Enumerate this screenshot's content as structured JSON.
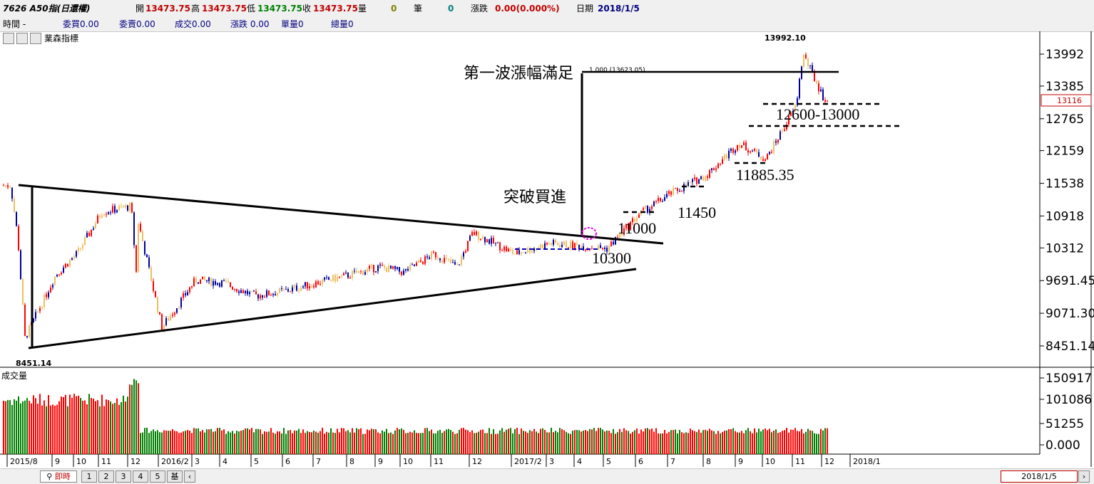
{
  "header": {
    "symbol": "7626 A50指(日還權)",
    "open_label": "開",
    "open": "13473.75",
    "high_label": "高",
    "high": "13473.75",
    "low_label": "低",
    "low": "13473.75",
    "close_label": "收",
    "close": "13473.75",
    "volume_label": "量",
    "volume": "0",
    "trades_label": "筆",
    "trades": "0",
    "change_label": "漲跌",
    "change": "0.00(0.000%)",
    "date_label": "日期",
    "date": "2018/1/5"
  },
  "subheader": {
    "time": "時間 -",
    "bid": "委買0.00",
    "ask": "委賣0.00",
    "deal": "成交0.00",
    "chg": "漲跌 0.00",
    "single": "單量0",
    "total": "總量0"
  },
  "toolbar": {
    "indicator_name": "業森指標"
  },
  "volume_panel": {
    "label": "成交量"
  },
  "bottom": {
    "query_button": "即時",
    "pages": [
      "1",
      "2",
      "3",
      "4",
      "5",
      "基"
    ],
    "date_box": "2018/1/5"
  },
  "colors": {
    "up": "#ff0000",
    "down": "#000099",
    "neutral": "#e8c060",
    "volume_up": "#ff0000",
    "volume_down": "#008000",
    "annotation": "#000000"
  },
  "chart_data": {
    "type": "candlestick",
    "title": "",
    "price_axis_ticks": [
      "13992",
      "13385",
      "12765",
      "12159",
      "11538",
      "10918",
      "10312",
      "9691.45",
      "9071.30",
      "8451.14"
    ],
    "current_price_label": "13116",
    "max_label": "13992.10",
    "min_label": "8451.14",
    "ylim": [
      8451.14,
      13992.1
    ],
    "x_ticks": [
      "2015/8",
      "9",
      "10",
      "11",
      "12",
      "2016/2",
      "3",
      "4",
      "5",
      "6",
      "7",
      "8",
      "9",
      "10",
      "11",
      "12",
      "2017/2",
      "3",
      "4",
      "5",
      "6",
      "7",
      "8",
      "9",
      "10",
      "11",
      "12",
      "2018/1"
    ],
    "volume_axis_ticks": [
      "150917",
      "101086",
      "51255",
      "0.000"
    ],
    "annotations": {
      "wave_label": "第一波漲幅滿足",
      "fib_label": "1.000 (13623.05)",
      "breakout_label": "突破買進",
      "support_10300": "10300",
      "support_11000": "11000",
      "support_11450": "11450",
      "support_11885": "11885.35",
      "zone_12600": "12600-13000"
    },
    "price_path": [
      [
        "2015/8",
        11500
      ],
      [
        "2015/8",
        10500
      ],
      [
        "2015/8",
        8600
      ],
      [
        "2015/9",
        9800
      ],
      [
        "2015/10",
        10200
      ],
      [
        "2015/11",
        11000
      ],
      [
        "2015/12",
        11100
      ],
      [
        "2015/12",
        10800
      ],
      [
        "2016/1",
        9500
      ],
      [
        "2016/2",
        8800
      ],
      [
        "2016/3",
        9700
      ],
      [
        "2016/4",
        9650
      ],
      [
        "2016/5",
        9400
      ],
      [
        "2016/6",
        9500
      ],
      [
        "2016/7",
        9650
      ],
      [
        "2016/8",
        9800
      ],
      [
        "2016/9",
        9950
      ],
      [
        "2016/10",
        9850
      ],
      [
        "2016/11",
        10200
      ],
      [
        "2016/12",
        10600
      ],
      [
        "2017/1",
        9950
      ],
      [
        "2017/2",
        10200
      ],
      [
        "2017/3",
        10400
      ],
      [
        "2017/4",
        10350
      ],
      [
        "2017/5",
        10300
      ],
      [
        "2017/6",
        10950
      ],
      [
        "2017/7",
        11350
      ],
      [
        "2017/8",
        11700
      ],
      [
        "2017/9",
        12300
      ],
      [
        "2017/10",
        12000
      ],
      [
        "2017/11",
        13000
      ],
      [
        "2017/11",
        13992.1
      ],
      [
        "2017/12",
        13100
      ],
      [
        "2018/1",
        13473.75
      ]
    ],
    "volume_series": {
      "2015/8-2016/1": 100000,
      "2016/1 peak": 150000,
      "2016/2-2018/1": 50000
    }
  }
}
